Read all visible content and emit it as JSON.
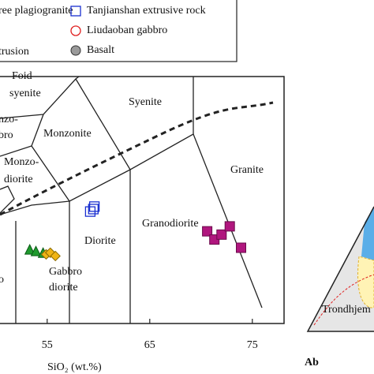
{
  "chart_data": {
    "type": "scatter",
    "xlabel": "SiO₂ (wt.%)",
    "xlim": [
      50.4,
      78
    ],
    "xticks": [
      55,
      65,
      75
    ],
    "ylim": [
      0,
      15
    ],
    "series": [
      {
        "name": "ree plagiogranite",
        "color": "#b0167e",
        "marker": "square",
        "x": [
          70.6,
          71.3,
          72.0,
          72.8,
          73.9
        ],
        "values": [
          5.6,
          5.1,
          5.4,
          5.9,
          4.6
        ]
      },
      {
        "name": "Tanjianshan extrusive rock",
        "color": "#1a2fd0",
        "marker": "open-square",
        "x": [
          59.2,
          59.5,
          59.6
        ],
        "values": [
          6.8,
          6.95,
          7.1
        ]
      },
      {
        "name": "Liudaoban gabbro",
        "color": "#e02020",
        "marker": "open-circle",
        "x": [],
        "values": []
      },
      {
        "name": "Basalt",
        "color": "#9a9a9a",
        "marker": "circle",
        "x": [],
        "values": []
      },
      {
        "name": "trusion",
        "x": [],
        "values": []
      },
      {
        "color": "#1f9a2e",
        "marker": "triangle",
        "x": [
          53.3,
          53.9,
          54.6
        ],
        "values": [
          4.5,
          4.4,
          4.3
        ]
      },
      {
        "color": "#f0b416",
        "marker": "diamond",
        "x": [
          54.9,
          55.3,
          55.8
        ],
        "values": [
          4.2,
          4.3,
          4.1
        ]
      }
    ],
    "annotations": [
      "Foid",
      "syenite",
      "nzo-",
      "bro",
      "Monzonite",
      "Syenite",
      "Monzo-",
      "diorite",
      "Granite",
      "Granodiorite",
      "Diorite",
      "Gabbro",
      "diorite",
      "o",
      "Trondhjem",
      "Ab"
    ]
  }
}
